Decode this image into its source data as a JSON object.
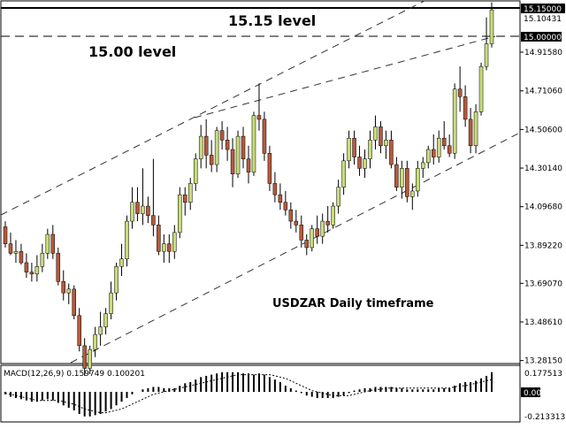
{
  "annotations": {
    "level_1515": "15.15 level",
    "level_1500": "15.00 level",
    "subtitle": "USDZAR Daily timeframe"
  },
  "price_labels": {
    "current": "15.15000",
    "current_sub": "15.10431",
    "marker_1500": "15.00000"
  },
  "macd_labels": {
    "header": "MACD(12,26,9) 0.159749 0.100201",
    "top": "0.177513",
    "zero": "0.00",
    "bottom": "-0.213313"
  },
  "chart_data": [
    {
      "type": "candlestick",
      "title": "USDZAR Daily timeframe",
      "y_ticks": [
        15.15,
        15.0,
        14.9158,
        14.7106,
        14.506,
        14.3014,
        14.0968,
        13.8922,
        13.6907,
        13.4861,
        13.2815
      ],
      "y_tick_labels": [
        "15.15000",
        "15.00000",
        "14.91580",
        "14.71060",
        "14.50600",
        "14.30140",
        "14.09680",
        "13.89220",
        "13.69070",
        "13.48610",
        "13.28150"
      ],
      "ylim": [
        13.2,
        15.2
      ],
      "levels": [
        {
          "name": "15.15 level",
          "value": 15.15
        },
        {
          "name": "15.00 level",
          "value": 15.0
        }
      ],
      "candles": [
        [
          13.99,
          14.02,
          13.88,
          13.9
        ],
        [
          13.9,
          13.96,
          13.84,
          13.85
        ],
        [
          13.85,
          13.92,
          13.8,
          13.86
        ],
        [
          13.86,
          13.9,
          13.79,
          13.8
        ],
        [
          13.8,
          13.85,
          13.72,
          13.75
        ],
        [
          13.75,
          13.8,
          13.7,
          13.74
        ],
        [
          13.74,
          13.84,
          13.7,
          13.78
        ],
        [
          13.78,
          13.9,
          13.75,
          13.85
        ],
        [
          13.85,
          13.98,
          13.82,
          13.95
        ],
        [
          13.95,
          14.0,
          13.82,
          13.85
        ],
        [
          13.85,
          13.88,
          13.68,
          13.7
        ],
        [
          13.7,
          13.76,
          13.6,
          13.64
        ],
        [
          13.64,
          13.69,
          13.58,
          13.66
        ],
        [
          13.66,
          13.68,
          13.5,
          13.52
        ],
        [
          13.52,
          13.56,
          13.33,
          13.36
        ],
        [
          13.36,
          13.4,
          13.2,
          13.24
        ],
        [
          13.24,
          13.36,
          13.21,
          13.34
        ],
        [
          13.34,
          13.46,
          13.3,
          13.42
        ],
        [
          13.42,
          13.54,
          13.36,
          13.46
        ],
        [
          13.46,
          13.56,
          13.42,
          13.53
        ],
        [
          13.53,
          13.7,
          13.5,
          13.64
        ],
        [
          13.64,
          13.8,
          13.6,
          13.78
        ],
        [
          13.78,
          13.9,
          13.73,
          13.82
        ],
        [
          13.82,
          14.05,
          13.78,
          14.02
        ],
        [
          14.02,
          14.2,
          13.98,
          14.12
        ],
        [
          14.12,
          14.2,
          14.02,
          14.06
        ],
        [
          14.06,
          14.3,
          14.0,
          14.1
        ],
        [
          14.1,
          14.15,
          14.01,
          14.05
        ],
        [
          14.05,
          14.35,
          13.94,
          14.0
        ],
        [
          14.0,
          14.05,
          13.84,
          13.86
        ],
        [
          13.86,
          13.95,
          13.8,
          13.9
        ],
        [
          13.9,
          13.95,
          13.8,
          13.86
        ],
        [
          13.86,
          14.0,
          13.82,
          13.96
        ],
        [
          13.96,
          14.2,
          13.93,
          14.16
        ],
        [
          14.16,
          14.2,
          14.05,
          14.12
        ],
        [
          14.12,
          14.25,
          14.08,
          14.22
        ],
        [
          14.22,
          14.38,
          14.18,
          14.35
        ],
        [
          14.35,
          14.53,
          14.3,
          14.47
        ],
        [
          14.47,
          14.56,
          14.3,
          14.37
        ],
        [
          14.37,
          14.45,
          14.28,
          14.32
        ],
        [
          14.32,
          14.52,
          14.28,
          14.5
        ],
        [
          14.5,
          14.55,
          14.4,
          14.45
        ],
        [
          14.45,
          14.52,
          14.34,
          14.4
        ],
        [
          14.4,
          14.46,
          14.2,
          14.27
        ],
        [
          14.27,
          14.5,
          14.25,
          14.47
        ],
        [
          14.47,
          14.52,
          14.3,
          14.35
        ],
        [
          14.35,
          14.42,
          14.22,
          14.28
        ],
        [
          14.28,
          14.6,
          14.26,
          14.58
        ],
        [
          14.58,
          14.75,
          14.5,
          14.56
        ],
        [
          14.56,
          14.6,
          14.34,
          14.38
        ],
        [
          14.38,
          14.42,
          14.18,
          14.22
        ],
        [
          14.22,
          14.28,
          14.12,
          14.16
        ],
        [
          14.16,
          14.22,
          14.08,
          14.12
        ],
        [
          14.12,
          14.18,
          14.05,
          14.08
        ],
        [
          14.08,
          14.12,
          13.98,
          14.02
        ],
        [
          14.02,
          14.08,
          13.96,
          14.0
        ],
        [
          14.0,
          14.05,
          13.88,
          13.92
        ],
        [
          13.92,
          13.95,
          13.84,
          13.88
        ],
        [
          13.88,
          14.0,
          13.86,
          13.98
        ],
        [
          13.98,
          14.05,
          13.9,
          13.94
        ],
        [
          13.94,
          14.06,
          13.9,
          14.02
        ],
        [
          14.02,
          14.1,
          13.96,
          14.0
        ],
        [
          14.0,
          14.12,
          13.98,
          14.1
        ],
        [
          14.1,
          14.24,
          14.06,
          14.2
        ],
        [
          14.2,
          14.38,
          14.16,
          14.34
        ],
        [
          14.34,
          14.5,
          14.3,
          14.46
        ],
        [
          14.46,
          14.5,
          14.32,
          14.36
        ],
        [
          14.36,
          14.42,
          14.26,
          14.3
        ],
        [
          14.3,
          14.4,
          14.25,
          14.35
        ],
        [
          14.35,
          14.5,
          14.3,
          14.45
        ],
        [
          14.45,
          14.58,
          14.4,
          14.52
        ],
        [
          14.52,
          14.55,
          14.38,
          14.42
        ],
        [
          14.42,
          14.5,
          14.35,
          14.45
        ],
        [
          14.45,
          14.5,
          14.3,
          14.32
        ],
        [
          14.32,
          14.36,
          14.18,
          14.2
        ],
        [
          14.2,
          14.34,
          14.14,
          14.3
        ],
        [
          14.3,
          14.34,
          14.12,
          14.15
        ],
        [
          14.15,
          14.22,
          14.08,
          14.18
        ],
        [
          14.18,
          14.34,
          14.15,
          14.3
        ],
        [
          14.3,
          14.36,
          14.25,
          14.33
        ],
        [
          14.33,
          14.42,
          14.3,
          14.4
        ],
        [
          14.4,
          14.48,
          14.32,
          14.36
        ],
        [
          14.36,
          14.5,
          14.33,
          14.46
        ],
        [
          14.46,
          14.55,
          14.4,
          14.42
        ],
        [
          14.42,
          14.48,
          14.36,
          14.38
        ],
        [
          14.38,
          14.75,
          14.35,
          14.72
        ],
        [
          14.72,
          14.84,
          14.6,
          14.68
        ],
        [
          14.68,
          14.74,
          14.52,
          14.56
        ],
        [
          14.56,
          14.62,
          14.38,
          14.42
        ],
        [
          14.42,
          14.64,
          14.38,
          14.6
        ],
        [
          14.6,
          14.86,
          14.58,
          14.84
        ],
        [
          14.84,
          15.1,
          14.82,
          14.96
        ],
        [
          14.96,
          15.18,
          14.94,
          15.14
        ]
      ]
    },
    {
      "type": "bar",
      "title": "MACD(12,26,9) 0.159749 0.100201",
      "series": [
        {
          "name": "MACD",
          "values": [
            -0.02,
            -0.04,
            -0.05,
            -0.06,
            -0.07,
            -0.08,
            -0.08,
            -0.07,
            -0.06,
            -0.07,
            -0.09,
            -0.11,
            -0.13,
            -0.15,
            -0.18,
            -0.2,
            -0.2,
            -0.19,
            -0.18,
            -0.16,
            -0.14,
            -0.11,
            -0.08,
            -0.05,
            -0.02,
            0.0,
            0.02,
            0.03,
            0.04,
            0.04,
            0.03,
            0.03,
            0.03,
            0.05,
            0.07,
            0.08,
            0.1,
            0.12,
            0.13,
            0.14,
            0.15,
            0.16,
            0.16,
            0.16,
            0.16,
            0.15,
            0.15,
            0.14,
            0.15,
            0.14,
            0.12,
            0.1,
            0.08,
            0.05,
            0.03,
            0.01,
            -0.01,
            -0.03,
            -0.04,
            -0.05,
            -0.05,
            -0.05,
            -0.05,
            -0.04,
            -0.03,
            -0.01,
            0.01,
            0.02,
            0.03,
            0.03,
            0.04,
            0.04,
            0.04,
            0.04,
            0.03,
            0.03,
            0.02,
            0.02,
            0.02,
            0.02,
            0.02,
            0.02,
            0.03,
            0.03,
            0.03,
            0.05,
            0.07,
            0.08,
            0.08,
            0.09,
            0.11,
            0.13,
            0.16
          ]
        },
        {
          "name": "Signal",
          "values": [
            -0.01,
            -0.02,
            -0.03,
            -0.04,
            -0.05,
            -0.06,
            -0.07,
            -0.07,
            -0.07,
            -0.07,
            -0.07,
            -0.08,
            -0.09,
            -0.1,
            -0.12,
            -0.14,
            -0.15,
            -0.16,
            -0.17,
            -0.17,
            -0.16,
            -0.15,
            -0.14,
            -0.12,
            -0.1,
            -0.08,
            -0.06,
            -0.04,
            -0.02,
            -0.01,
            0.0,
            0.01,
            0.02,
            0.03,
            0.04,
            0.05,
            0.06,
            0.07,
            0.08,
            0.09,
            0.1,
            0.11,
            0.12,
            0.13,
            0.14,
            0.14,
            0.14,
            0.14,
            0.14,
            0.14,
            0.14,
            0.13,
            0.12,
            0.11,
            0.09,
            0.07,
            0.05,
            0.03,
            0.01,
            0.0,
            -0.01,
            -0.02,
            -0.03,
            -0.03,
            -0.03,
            -0.03,
            -0.02,
            -0.01,
            0.0,
            0.01,
            0.02,
            0.02,
            0.03,
            0.03,
            0.03,
            0.03,
            0.03,
            0.03,
            0.03,
            0.03,
            0.03,
            0.03,
            0.03,
            0.03,
            0.03,
            0.04,
            0.05,
            0.05,
            0.06,
            0.07,
            0.08,
            0.09,
            0.1
          ]
        }
      ],
      "ylim": [
        -0.22,
        0.18
      ]
    }
  ],
  "colors": {
    "bull": "#c8dc7a",
    "bear": "#b55a3c",
    "level_line": "#000000",
    "channel_line": "#333333",
    "macd_bar": "#000000"
  }
}
